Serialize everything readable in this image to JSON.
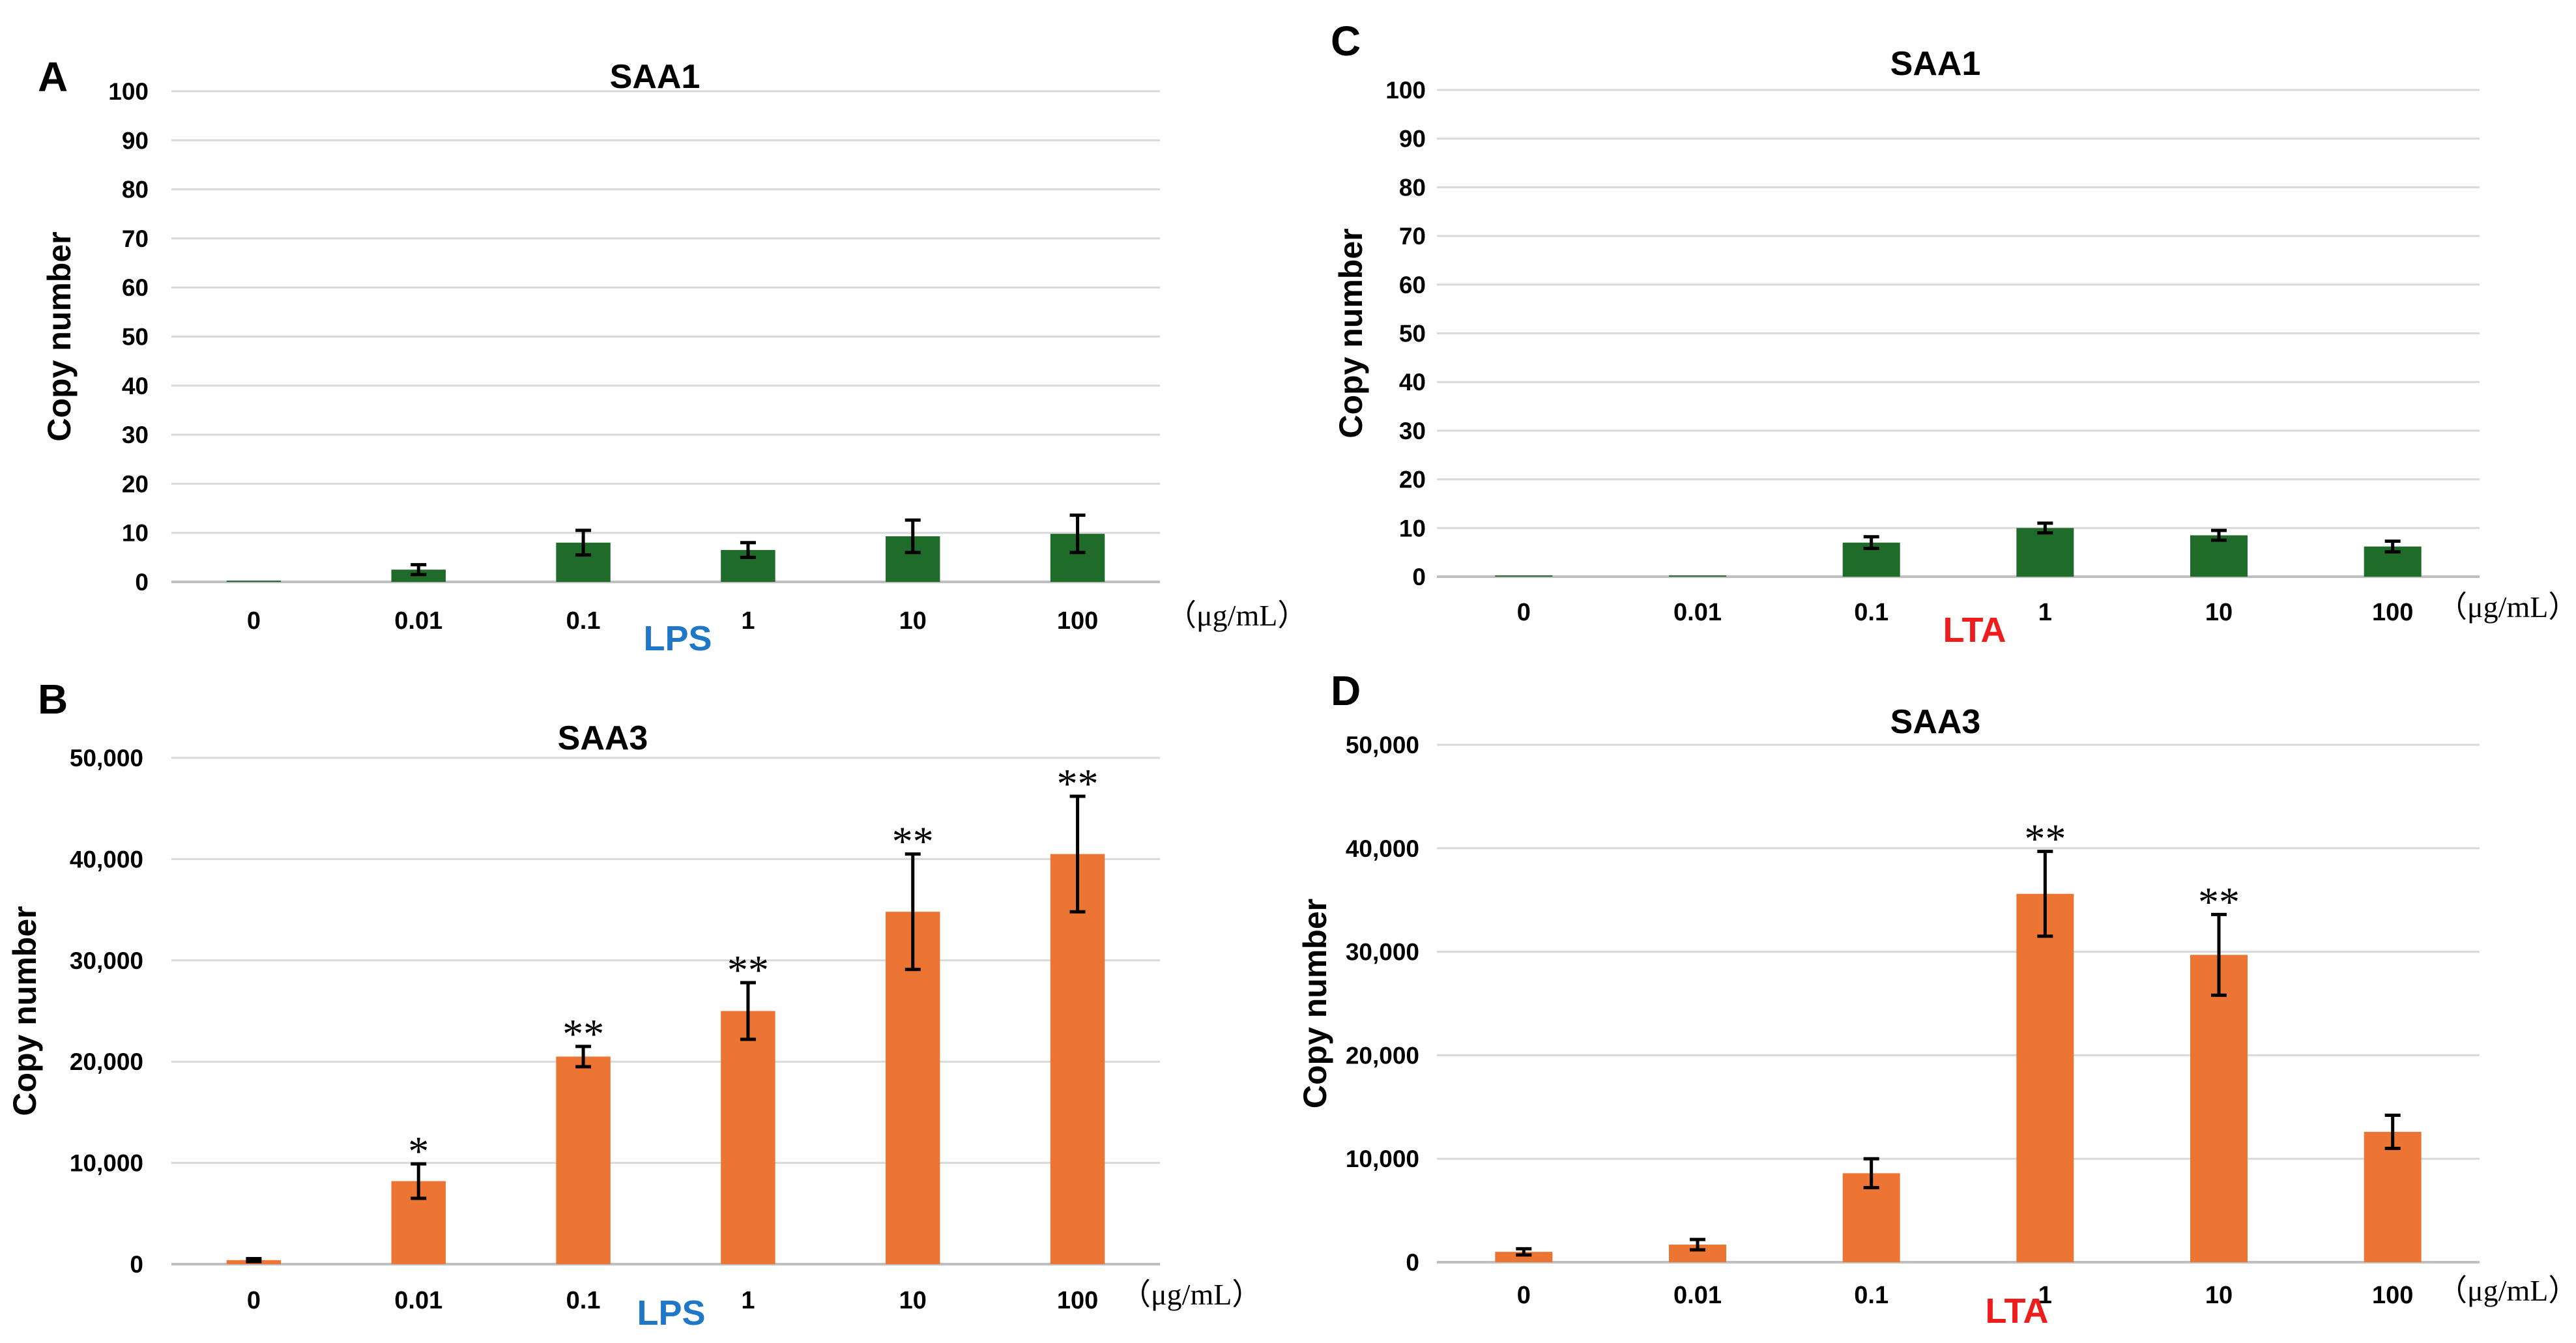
{
  "figure": {
    "unit_label": "（μg/mL）",
    "colors": {
      "saa1_bar": "#1e6b2a",
      "saa3_bar": "#ed7534",
      "lps_label": "#1f77c7",
      "lta_label": "#ee1c1c",
      "gridline": "#d9d9d9",
      "axis": "#bfbfbf",
      "text": "#000000"
    }
  },
  "chart_data": [
    {
      "panel": "A",
      "type": "bar",
      "title": "SAA1",
      "ylabel": "Copy number",
      "xlabel": "LPS",
      "xlabel_color": "lps_label",
      "bar_color": "saa1_bar",
      "ylim": [
        0,
        100
      ],
      "yticks": [
        0,
        10,
        20,
        30,
        40,
        50,
        60,
        70,
        80,
        90,
        100
      ],
      "ytick_labels": [
        "0",
        "10",
        "20",
        "30",
        "40",
        "50",
        "60",
        "70",
        "80",
        "90",
        "100"
      ],
      "categories": [
        "0",
        "0.01",
        "0.1",
        "1",
        "10",
        "100"
      ],
      "values": [
        0,
        2.5,
        8,
        6.5,
        9.3,
        9.8
      ],
      "errors": [
        0,
        1,
        2.5,
        1.5,
        3.3,
        3.8
      ],
      "significance": [
        "",
        "",
        "",
        "",
        "",
        ""
      ]
    },
    {
      "panel": "B",
      "type": "bar",
      "title": "SAA3",
      "ylabel": "Copy number",
      "xlabel": "LPS",
      "xlabel_color": "lps_label",
      "bar_color": "saa3_bar",
      "ylim": [
        0,
        50000
      ],
      "yticks": [
        0,
        10000,
        20000,
        30000,
        40000,
        50000
      ],
      "ytick_labels": [
        "0",
        "10,000",
        "20,000",
        "30,000",
        "40,000",
        "50,000"
      ],
      "categories": [
        "0",
        "0.01",
        "0.1",
        "1",
        "10",
        "100"
      ],
      "values": [
        400,
        8200,
        20500,
        25000,
        34800,
        40500
      ],
      "errors": [
        150,
        1700,
        1000,
        2800,
        5700,
        5700
      ],
      "significance": [
        "",
        "*",
        "**",
        "**",
        "**",
        "**"
      ]
    },
    {
      "panel": "C",
      "type": "bar",
      "title": "SAA1",
      "ylabel": "Copy number",
      "xlabel": "LTA",
      "xlabel_color": "lta_label",
      "bar_color": "saa1_bar",
      "ylim": [
        0,
        100
      ],
      "yticks": [
        0,
        10,
        20,
        30,
        40,
        50,
        60,
        70,
        80,
        90,
        100
      ],
      "ytick_labels": [
        "0",
        "10",
        "20",
        "30",
        "40",
        "50",
        "60",
        "70",
        "80",
        "90",
        "100"
      ],
      "categories": [
        "0",
        "0.01",
        "0.1",
        "1",
        "10",
        "100"
      ],
      "values": [
        0.1,
        0.1,
        7,
        10,
        8.5,
        6.2
      ],
      "errors": [
        0,
        0,
        1.2,
        1,
        1,
        1.1
      ],
      "significance": [
        "",
        "",
        "",
        "",
        "",
        ""
      ]
    },
    {
      "panel": "D",
      "type": "bar",
      "title": "SAA3",
      "ylabel": "Copy number",
      "xlabel": "LTA",
      "xlabel_color": "lta_label",
      "bar_color": "saa3_bar",
      "ylim": [
        0,
        50000
      ],
      "yticks": [
        0,
        10000,
        20000,
        30000,
        40000,
        50000
      ],
      "ytick_labels": [
        "0",
        "10,000",
        "20,000",
        "30,000",
        "40,000",
        "50,000"
      ],
      "categories": [
        "0",
        "0.01",
        "0.1",
        "1",
        "10",
        "100"
      ],
      "values": [
        1000,
        1700,
        8600,
        35600,
        29700,
        12600
      ],
      "errors": [
        300,
        500,
        1400,
        4100,
        3900,
        1600
      ],
      "significance": [
        "",
        "",
        "",
        "**",
        "**",
        ""
      ]
    }
  ]
}
